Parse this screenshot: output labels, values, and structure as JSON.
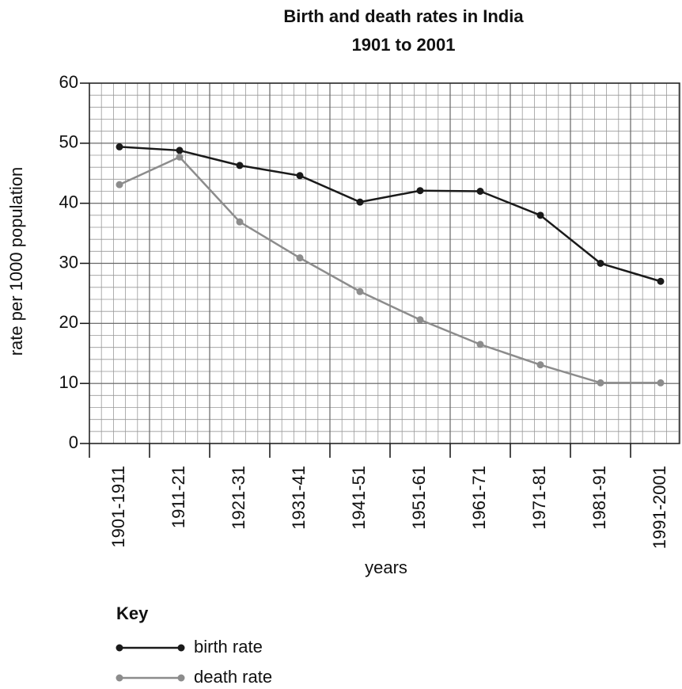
{
  "chart_data": {
    "type": "line",
    "title": [
      "Birth and death rates in India",
      "1901 to 2001"
    ],
    "xlabel": "years",
    "ylabel": "rate per 1000 population",
    "legend_title": "Key",
    "categories": [
      "1901-1911",
      "1911-21",
      "1921-31",
      "1931-41",
      "1941-51",
      "1951-61",
      "1961-71",
      "1971-81",
      "1981-91",
      "1991-2001"
    ],
    "series": [
      {
        "name": "birth rate",
        "color": "#1a1a1a",
        "values": [
          49.4,
          48.8,
          46.3,
          44.6,
          40.2,
          42.1,
          42.0,
          38.0,
          30.0,
          27.0
        ]
      },
      {
        "name": "death rate",
        "color": "#8c8c8c",
        "values": [
          43.1,
          47.7,
          36.9,
          30.9,
          25.3,
          20.6,
          16.5,
          13.1,
          10.1,
          10.1
        ]
      }
    ],
    "ylim": [
      0,
      60
    ],
    "yticks": [
      0,
      10,
      20,
      30,
      40,
      50,
      60
    ],
    "grid": true
  }
}
